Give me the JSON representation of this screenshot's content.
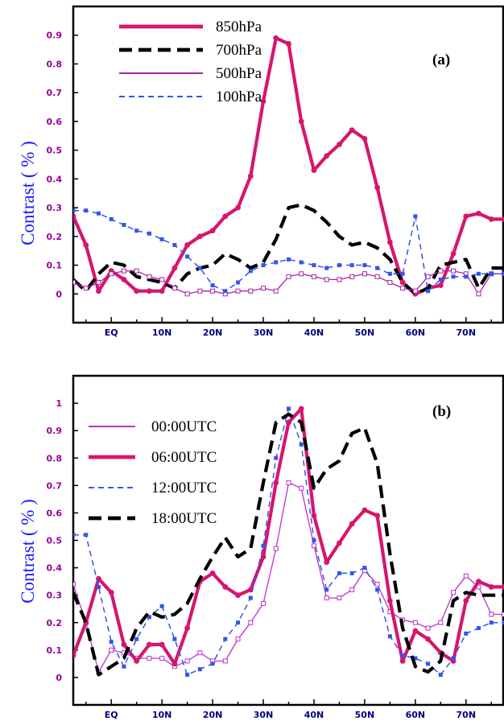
{
  "x_tick_labels": [
    "EQ",
    "10N",
    "20N",
    "30N",
    "40N",
    "50N",
    "60N",
    "70N"
  ],
  "chart_data": [
    {
      "type": "line",
      "panel_label": "(a)",
      "ylabel": "Contrast  ( % )",
      "ylim": [
        -0.1,
        1.0
      ],
      "y_ticks": [
        "0",
        "0.1",
        "0.2",
        "0.3",
        "0.4",
        "0.5",
        "0.6",
        "0.7",
        "0.8",
        "0.9"
      ],
      "xlim": [
        -7.5,
        77.5
      ],
      "x_ticks": [
        0,
        10,
        20,
        30,
        40,
        50,
        60,
        70
      ],
      "x_tick_labels": [
        "EQ",
        "10N",
        "20N",
        "30N",
        "40N",
        "50N",
        "60N",
        "70N"
      ],
      "legend_position": "top-left",
      "series": [
        {
          "name": "850hPa",
          "color": "#d6166e",
          "style": "solid-thick",
          "marker": "circle",
          "x": [
            -7.5,
            -5,
            -2.5,
            0,
            2.5,
            5,
            7.5,
            10,
            12.5,
            15,
            17.5,
            20,
            22.5,
            25,
            27.5,
            30,
            32.5,
            35,
            37.5,
            40,
            42.5,
            45,
            47.5,
            50,
            52.5,
            55,
            57.5,
            60,
            62.5,
            65,
            67.5,
            70,
            72.5,
            75,
            77.5
          ],
          "y": [
            0.27,
            0.17,
            0.01,
            0.08,
            0.05,
            0.01,
            0.01,
            0.01,
            0.09,
            0.17,
            0.2,
            0.22,
            0.27,
            0.3,
            0.41,
            0.67,
            0.89,
            0.87,
            0.6,
            0.43,
            0.48,
            0.52,
            0.57,
            0.54,
            0.37,
            0.18,
            0.04,
            0.0,
            0.02,
            0.03,
            0.14,
            0.27,
            0.28,
            0.26,
            0.26
          ]
        },
        {
          "name": "700hPa",
          "color": "#000000",
          "style": "dashed-thick",
          "marker": "none",
          "x": [
            -7.5,
            -5,
            -2.5,
            0,
            2.5,
            5,
            7.5,
            10,
            12.5,
            15,
            17.5,
            20,
            22.5,
            25,
            27.5,
            30,
            32.5,
            35,
            37.5,
            40,
            42.5,
            45,
            47.5,
            50,
            52.5,
            55,
            57.5,
            60,
            62.5,
            65,
            67.5,
            70,
            72.5,
            75,
            77.5
          ],
          "y": [
            0.05,
            0.01,
            0.07,
            0.11,
            0.1,
            0.06,
            0.05,
            0.04,
            0.02,
            0.07,
            0.09,
            0.1,
            0.14,
            0.12,
            0.09,
            0.11,
            0.19,
            0.3,
            0.31,
            0.29,
            0.25,
            0.2,
            0.17,
            0.18,
            0.16,
            0.12,
            0.04,
            0.0,
            0.02,
            0.1,
            0.11,
            0.12,
            0.02,
            0.09,
            0.09
          ]
        },
        {
          "name": "500hPa",
          "color": "#aa22aa",
          "style": "solid-thin",
          "marker": "open-square",
          "x": [
            -7.5,
            -5,
            -2.5,
            0,
            2.5,
            5,
            7.5,
            10,
            12.5,
            15,
            17.5,
            20,
            22.5,
            25,
            27.5,
            30,
            32.5,
            35,
            37.5,
            40,
            42.5,
            45,
            47.5,
            50,
            52.5,
            55,
            57.5,
            60,
            62.5,
            65,
            67.5,
            70,
            72.5,
            75,
            77.5
          ],
          "y": [
            0.04,
            0.02,
            0.04,
            0.07,
            0.08,
            0.08,
            0.06,
            0.05,
            0.02,
            0.0,
            0.01,
            0.01,
            0.0,
            0.01,
            0.01,
            0.02,
            0.01,
            0.06,
            0.07,
            0.06,
            0.05,
            0.05,
            0.06,
            0.07,
            0.06,
            0.04,
            0.02,
            0.01,
            0.06,
            0.08,
            0.08,
            0.07,
            0.0,
            0.07,
            0.07
          ]
        },
        {
          "name": "100hPa",
          "color": "#3355ee",
          "style": "dashed-thin",
          "marker": "filled-square",
          "x": [
            -7.5,
            -5,
            -2.5,
            0,
            2.5,
            5,
            7.5,
            10,
            12.5,
            15,
            17.5,
            20,
            22.5,
            25,
            27.5,
            30,
            32.5,
            35,
            37.5,
            40,
            42.5,
            45,
            47.5,
            50,
            52.5,
            55,
            57.5,
            60,
            62.5,
            65,
            67.5,
            70,
            72.5,
            75,
            77.5
          ],
          "y": [
            0.29,
            0.29,
            0.28,
            0.26,
            0.24,
            0.22,
            0.21,
            0.19,
            0.17,
            0.13,
            0.09,
            0.03,
            0.01,
            0.04,
            0.08,
            0.1,
            0.11,
            0.12,
            0.11,
            0.1,
            0.09,
            0.1,
            0.1,
            0.1,
            0.09,
            0.07,
            0.07,
            0.27,
            0.01,
            0.05,
            0.06,
            0.06,
            0.07,
            0.07,
            0.07
          ]
        }
      ]
    },
    {
      "type": "line",
      "panel_label": "(b)",
      "ylabel": "Contrast  ( % )",
      "ylim": [
        -0.1,
        1.1
      ],
      "y_ticks": [
        "0",
        "0.1",
        "0.2",
        "0.3",
        "0.4",
        "0.5",
        "0.6",
        "0.7",
        "0.8",
        "0.9",
        "1"
      ],
      "xlim": [
        -7.5,
        77.5
      ],
      "x_ticks": [
        0,
        10,
        20,
        30,
        40,
        50,
        60,
        70
      ],
      "x_tick_labels": [
        "EQ",
        "10N",
        "20N",
        "30N",
        "40N",
        "50N",
        "60N",
        "70N"
      ],
      "legend_position": "top-left",
      "series": [
        {
          "name": "00:00UTC",
          "color": "#bb33cc",
          "style": "solid-thin",
          "marker": "open-square",
          "x": [
            -7.5,
            -5,
            -2.5,
            0,
            2.5,
            5,
            7.5,
            10,
            12.5,
            15,
            17.5,
            20,
            22.5,
            25,
            27.5,
            30,
            32.5,
            35,
            37.5,
            40,
            42.5,
            45,
            47.5,
            50,
            52.5,
            55,
            57.5,
            60,
            62.5,
            65,
            67.5,
            70,
            72.5,
            75,
            77.5
          ],
          "y": [
            0.34,
            0.2,
            0.02,
            0.1,
            0.09,
            0.07,
            0.07,
            0.07,
            0.04,
            0.06,
            0.09,
            0.06,
            0.06,
            0.14,
            0.2,
            0.27,
            0.47,
            0.71,
            0.69,
            0.48,
            0.29,
            0.29,
            0.32,
            0.39,
            0.34,
            0.24,
            0.21,
            0.2,
            0.18,
            0.2,
            0.31,
            0.37,
            0.33,
            0.23,
            0.23
          ]
        },
        {
          "name": "06:00UTC",
          "color": "#d6166e",
          "style": "solid-thick",
          "marker": "circle",
          "x": [
            -7.5,
            -5,
            -2.5,
            0,
            2.5,
            5,
            7.5,
            10,
            12.5,
            15,
            17.5,
            20,
            22.5,
            25,
            27.5,
            30,
            32.5,
            35,
            37.5,
            40,
            42.5,
            45,
            47.5,
            50,
            52.5,
            55,
            57.5,
            60,
            62.5,
            65,
            67.5,
            70,
            72.5,
            75,
            77.5
          ],
          "y": [
            0.08,
            0.2,
            0.36,
            0.31,
            0.12,
            0.06,
            0.12,
            0.12,
            0.05,
            0.18,
            0.35,
            0.38,
            0.33,
            0.3,
            0.32,
            0.44,
            0.71,
            0.93,
            0.98,
            0.59,
            0.42,
            0.49,
            0.56,
            0.61,
            0.59,
            0.28,
            0.06,
            0.17,
            0.14,
            0.09,
            0.06,
            0.28,
            0.35,
            0.33,
            0.33
          ]
        },
        {
          "name": "12:00UTC",
          "color": "#3355ee",
          "style": "dashed-thin",
          "marker": "filled-square",
          "x": [
            -7.5,
            -5,
            -2.5,
            0,
            2.5,
            5,
            7.5,
            10,
            12.5,
            15,
            17.5,
            20,
            22.5,
            25,
            27.5,
            30,
            32.5,
            35,
            37.5,
            40,
            42.5,
            45,
            47.5,
            50,
            52.5,
            55,
            57.5,
            60,
            62.5,
            65,
            67.5,
            70,
            72.5,
            75,
            77.5
          ],
          "y": [
            0.52,
            0.52,
            0.33,
            0.13,
            0.04,
            0.14,
            0.22,
            0.26,
            0.14,
            0.01,
            0.03,
            0.05,
            0.14,
            0.2,
            0.29,
            0.48,
            0.8,
            0.98,
            0.85,
            0.5,
            0.32,
            0.38,
            0.38,
            0.4,
            0.32,
            0.15,
            0.08,
            0.07,
            0.05,
            0.01,
            0.07,
            0.16,
            0.18,
            0.2,
            0.2
          ]
        },
        {
          "name": "18:00UTC",
          "color": "#000000",
          "style": "dashed-thick",
          "marker": "none",
          "x": [
            -7.5,
            -5,
            -2.5,
            0,
            2.5,
            5,
            7.5,
            10,
            12.5,
            15,
            17.5,
            20,
            22.5,
            25,
            27.5,
            30,
            32.5,
            35,
            37.5,
            40,
            42.5,
            45,
            47.5,
            50,
            52.5,
            55,
            57.5,
            60,
            62.5,
            65,
            67.5,
            70,
            72.5,
            75,
            77.5
          ],
          "y": [
            0.31,
            0.2,
            0.01,
            0.04,
            0.07,
            0.18,
            0.24,
            0.22,
            0.23,
            0.27,
            0.36,
            0.44,
            0.51,
            0.44,
            0.47,
            0.71,
            0.93,
            0.96,
            0.93,
            0.69,
            0.76,
            0.79,
            0.89,
            0.91,
            0.78,
            0.45,
            0.18,
            0.04,
            0.02,
            0.06,
            0.28,
            0.31,
            0.3,
            0.3,
            0.3
          ]
        }
      ]
    }
  ]
}
